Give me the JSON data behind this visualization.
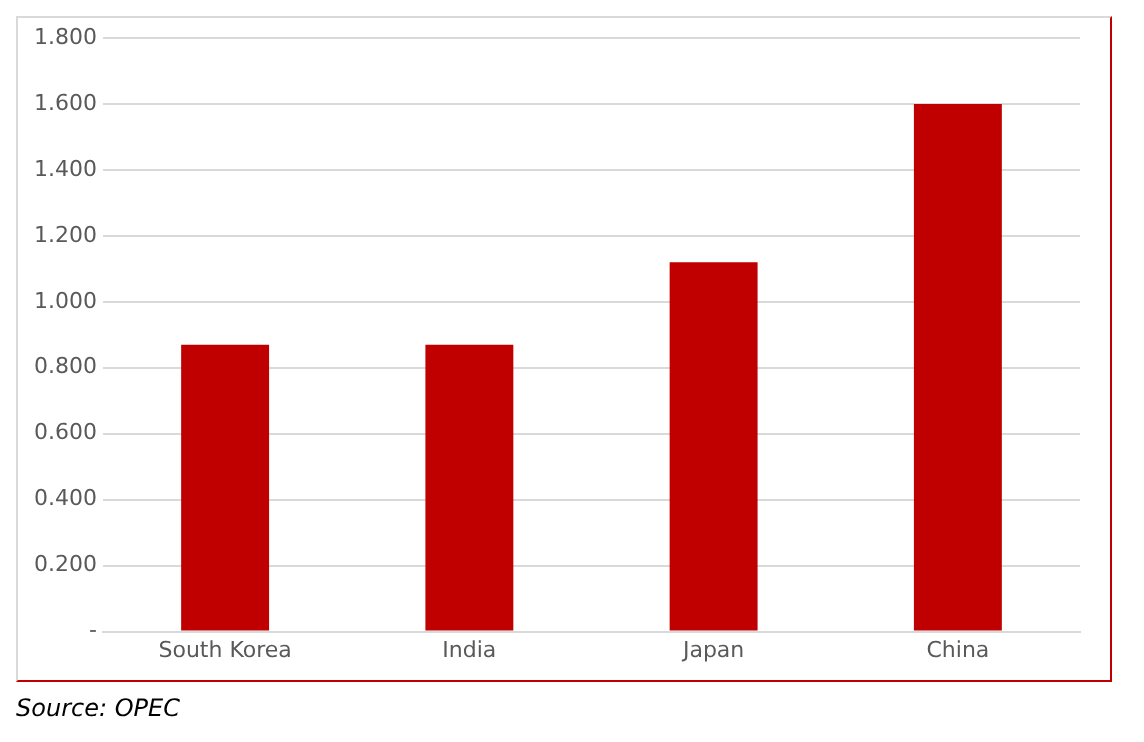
{
  "chart_data": {
    "type": "bar",
    "categories": [
      "South Korea",
      "India",
      "Japan",
      "China"
    ],
    "values": [
      0.87,
      0.87,
      1.12,
      1.6
    ],
    "color": "#c00000",
    "ylim": [
      0,
      1.8
    ],
    "yticks": [
      {
        "value": 0,
        "label": "-"
      },
      {
        "value": 0.2,
        "label": "0.200"
      },
      {
        "value": 0.4,
        "label": "0.400"
      },
      {
        "value": 0.6,
        "label": "0.600"
      },
      {
        "value": 0.8,
        "label": "0.800"
      },
      {
        "value": 1,
        "label": "1.000"
      },
      {
        "value": 1.2,
        "label": "1.200"
      },
      {
        "value": 1.4,
        "label": "1.400"
      },
      {
        "value": 1.6,
        "label": "1.600"
      },
      {
        "value": 1.8,
        "label": "1.800"
      }
    ],
    "grid": "y",
    "legend": false,
    "annotations": [
      "Source: OPEC"
    ]
  }
}
